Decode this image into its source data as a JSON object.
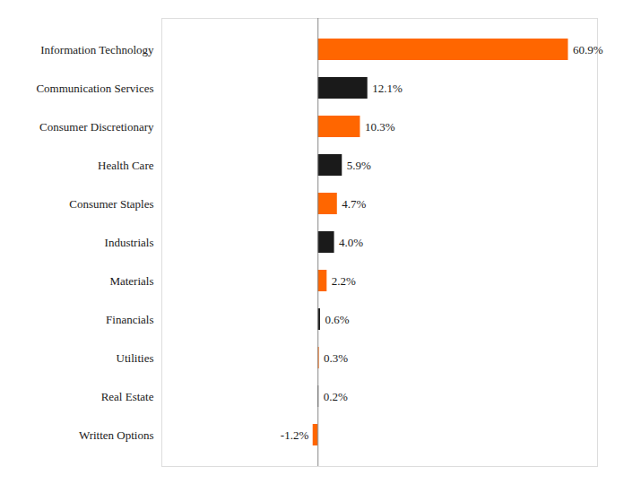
{
  "chart_data": {
    "type": "bar",
    "orientation": "horizontal",
    "categories": [
      "Information Technology",
      "Communication Services",
      "Consumer Discretionary",
      "Health Care",
      "Consumer Staples",
      "Industrials",
      "Materials",
      "Financials",
      "Utilities",
      "Real Estate",
      "Written Options"
    ],
    "values": [
      60.9,
      12.1,
      10.3,
      5.9,
      4.7,
      4.0,
      2.2,
      0.6,
      0.3,
      0.2,
      -1.2
    ],
    "value_labels": [
      "60.9%",
      "12.1%",
      "10.3%",
      "5.9%",
      "4.7%",
      "4.0%",
      "2.2%",
      "0.6%",
      "0.3%",
      "0.2%",
      "-1.2%"
    ],
    "colors": [
      "#FF6600",
      "#1a1a1a",
      "#FF6600",
      "#1a1a1a",
      "#FF6600",
      "#1a1a1a",
      "#FF6600",
      "#1a1a1a",
      "#FF6600",
      "#1a1a1a",
      "#FF6600"
    ],
    "data_labels": true,
    "xlim": [
      -38,
      68
    ],
    "tick_labels": "y",
    "grid": false
  }
}
